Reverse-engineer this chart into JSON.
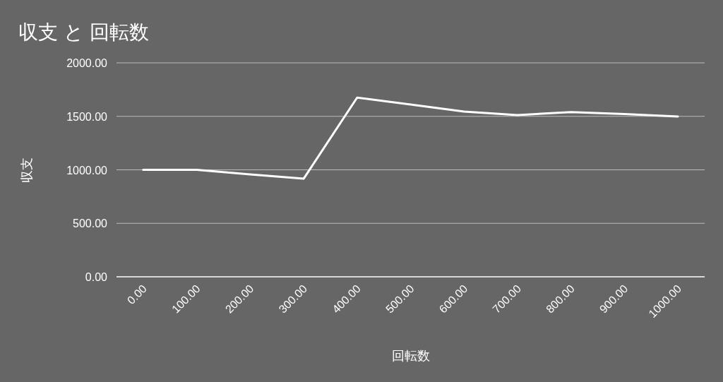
{
  "chart_data": {
    "type": "line",
    "title": "収支 と 回転数",
    "xlabel": "回転数",
    "ylabel": "収支",
    "categories": [
      "0.00",
      "100.00",
      "200.00",
      "300.00",
      "400.00",
      "500.00",
      "600.00",
      "700.00",
      "800.00",
      "900.00",
      "1000.00"
    ],
    "series": [
      {
        "color": "#ffffff",
        "values": [
          1000,
          1000,
          957,
          917,
          1675,
          1610,
          1545,
          1512,
          1540,
          1522,
          1498
        ]
      }
    ],
    "ylim": [
      0,
      2000
    ],
    "yticks": [
      {
        "value": 0,
        "label": "0.00"
      },
      {
        "value": 500,
        "label": "500.00"
      },
      {
        "value": 1000,
        "label": "1000.00"
      },
      {
        "value": 1500,
        "label": "1500.00"
      },
      {
        "value": 2000,
        "label": "2000.00"
      }
    ],
    "grid": "y"
  }
}
